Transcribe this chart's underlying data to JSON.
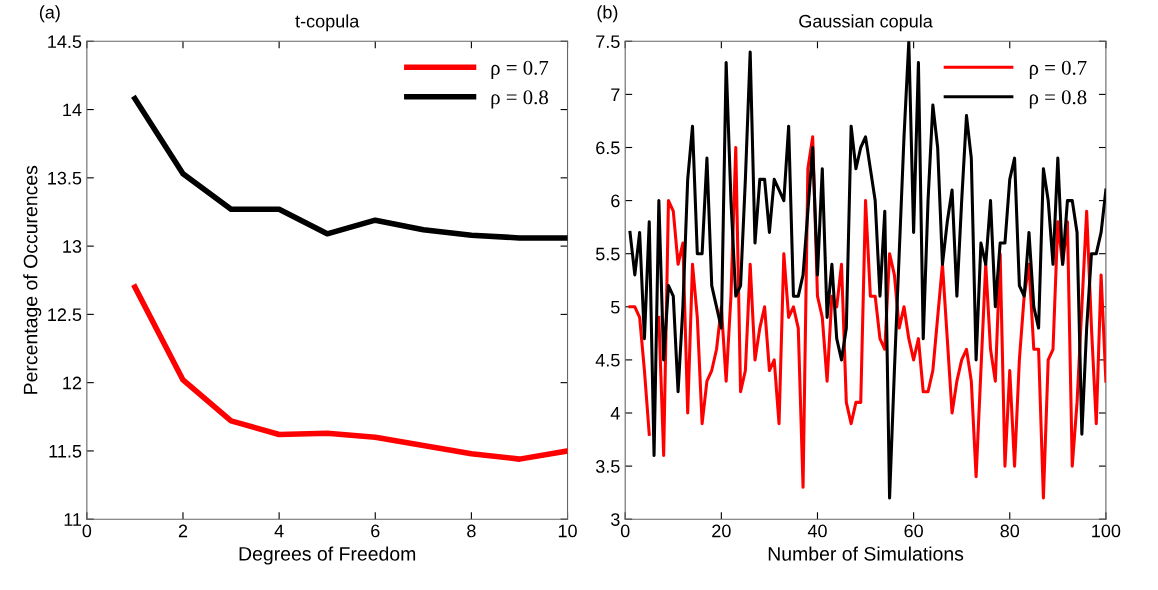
{
  "chart_data": [
    {
      "type": "line",
      "title": "t-copula",
      "annotations": [
        "(a)"
      ],
      "xlabel": "Degrees of Freedom",
      "ylabel": "Percentage of Occurences",
      "xlim": [
        0,
        10
      ],
      "ylim": [
        11,
        14.5
      ],
      "xticks": [
        0,
        2,
        4,
        6,
        8,
        10
      ],
      "yticks": [
        11,
        11.5,
        12,
        12.5,
        13,
        13.5,
        14,
        14.5
      ],
      "grid": false,
      "legend": "top right",
      "marker": "none",
      "line_style": "solid",
      "x": [
        1,
        2,
        3,
        4,
        5,
        6,
        7,
        8,
        9,
        10
      ],
      "series": [
        {
          "name": "ρ = 0.7",
          "color": "#ff0000",
          "values": [
            12.7,
            12.02,
            11.72,
            11.62,
            11.63,
            11.6,
            11.54,
            11.48,
            11.44,
            11.5
          ]
        },
        {
          "name": "ρ = 0.8",
          "color": "#000000",
          "values": [
            14.08,
            13.53,
            13.27,
            13.27,
            13.09,
            13.19,
            13.12,
            13.08,
            13.06,
            13.06
          ]
        }
      ]
    },
    {
      "type": "line",
      "title": "Gaussian copula",
      "annotations": [
        "(b)"
      ],
      "xlabel": "Number of Simulations",
      "xlim": [
        0,
        100
      ],
      "ylim": [
        3,
        7.5
      ],
      "xticks": [
        0,
        20,
        40,
        60,
        80,
        100
      ],
      "yticks": [
        3,
        3.5,
        4,
        4.5,
        5,
        5.5,
        6,
        6.5,
        7,
        7.5
      ],
      "grid": false,
      "legend": "top right",
      "marker": "none",
      "line_style": "solid",
      "x": [
        1,
        2,
        3,
        4,
        5,
        6,
        7,
        8,
        9,
        10,
        11,
        12,
        13,
        14,
        15,
        16,
        17,
        18,
        19,
        20,
        21,
        22,
        23,
        24,
        25,
        26,
        27,
        28,
        29,
        30,
        31,
        32,
        33,
        34,
        35,
        36,
        37,
        38,
        39,
        40,
        41,
        42,
        43,
        44,
        45,
        46,
        47,
        48,
        49,
        50,
        51,
        52,
        53,
        54,
        55,
        56,
        57,
        58,
        59,
        60,
        61,
        62,
        63,
        64,
        65,
        66,
        67,
        68,
        69,
        70,
        71,
        72,
        73,
        74,
        75,
        76,
        77,
        78,
        79,
        80,
        81,
        82,
        83,
        84,
        85,
        86,
        87,
        88,
        89,
        90,
        91,
        92,
        93,
        94,
        95,
        96,
        97,
        98,
        99,
        100
      ],
      "series": [
        {
          "name": "ρ = 0.7",
          "color": "#ff0000",
          "values": [
            5.0,
            5.0,
            4.9,
            4.4,
            3.8,
            null,
            4.9,
            3.6,
            6.0,
            5.9,
            5.4,
            5.6,
            4.0,
            5.4,
            4.9,
            3.9,
            4.3,
            4.4,
            4.6,
            5.0,
            4.3,
            5.1,
            6.5,
            4.2,
            4.4,
            5.4,
            4.5,
            4.8,
            5.0,
            4.4,
            4.5,
            3.9,
            5.5,
            4.9,
            5.0,
            4.8,
            3.3,
            6.3,
            6.6,
            5.1,
            4.9,
            4.3,
            5.1,
            5.0,
            5.4,
            4.1,
            3.9,
            4.1,
            4.1,
            6.0,
            5.1,
            5.1,
            4.7,
            4.6,
            5.5,
            5.3,
            4.8,
            5.0,
            4.7,
            4.5,
            4.7,
            4.2,
            4.2,
            4.4,
            4.9,
            5.4,
            4.7,
            4.0,
            4.3,
            4.5,
            4.6,
            4.3,
            3.4,
            4.4,
            5.4,
            4.6,
            4.3,
            5.5,
            3.5,
            4.4,
            3.5,
            4.5,
            5.1,
            5.4,
            4.6,
            4.6,
            3.2,
            4.5,
            4.6,
            5.8,
            5.4,
            5.8,
            3.5,
            4.1,
            5.0,
            5.9,
            4.8,
            3.9,
            5.3,
            4.3
          ]
        },
        {
          "name": "ρ = 0.8",
          "color": "#000000",
          "values": [
            5.7,
            5.3,
            5.7,
            4.7,
            5.8,
            3.6,
            6.0,
            4.5,
            5.2,
            5.1,
            4.2,
            5.0,
            6.2,
            6.7,
            5.5,
            5.5,
            6.4,
            5.2,
            5.0,
            4.8,
            7.3,
            6.0,
            5.1,
            5.2,
            6.2,
            7.4,
            5.6,
            6.2,
            6.2,
            5.7,
            6.2,
            6.1,
            6.0,
            6.7,
            5.1,
            5.1,
            5.3,
            5.9,
            6.5,
            5.3,
            6.3,
            4.9,
            5.4,
            4.7,
            4.5,
            4.8,
            6.7,
            6.3,
            6.5,
            6.6,
            6.3,
            6.0,
            5.1,
            5.9,
            3.2,
            4.4,
            5.5,
            6.6,
            7.5,
            5.7,
            7.3,
            4.7,
            6.0,
            6.9,
            6.5,
            5.4,
            5.8,
            6.1,
            5.1,
            6.0,
            6.8,
            6.4,
            4.5,
            5.6,
            5.4,
            6.0,
            5.0,
            5.6,
            5.6,
            6.2,
            6.4,
            5.2,
            5.1,
            5.7,
            5.0,
            4.8,
            6.3,
            6.0,
            5.4,
            6.4,
            5.4,
            6.0,
            6.0,
            5.7,
            3.8,
            4.8,
            5.5,
            5.5,
            5.7,
            6.1
          ]
        }
      ]
    }
  ]
}
